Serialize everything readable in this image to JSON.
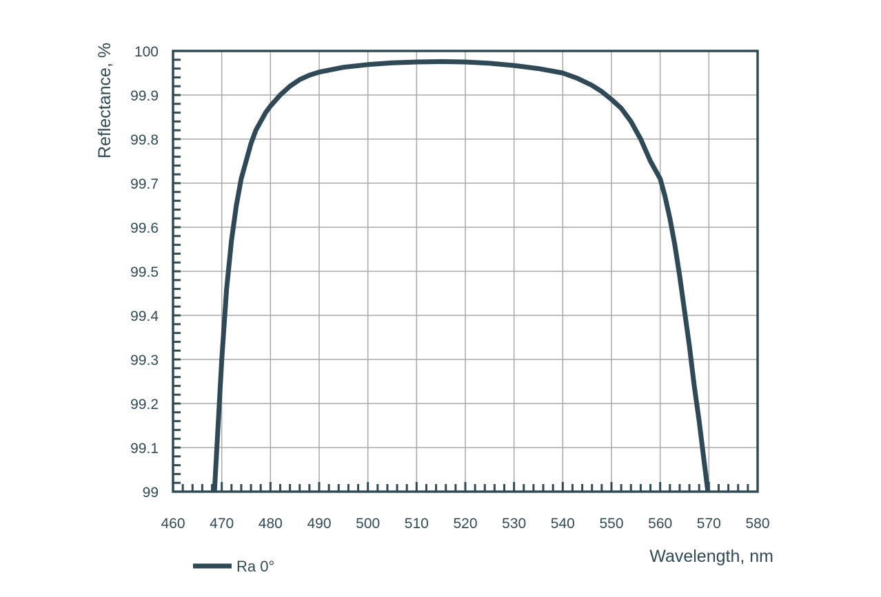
{
  "colors": {
    "axis": "#2f4a56",
    "grid": "#a8a8a8",
    "series": "#2f4a56",
    "background": "#ffffff"
  },
  "chart_data": {
    "type": "line",
    "title": "",
    "xlabel": "Wavelength, nm",
    "ylabel": "Reflectance, %",
    "xlim": [
      460,
      580
    ],
    "ylim": [
      99,
      100
    ],
    "x_ticks": [
      460,
      470,
      480,
      490,
      500,
      510,
      520,
      530,
      540,
      550,
      560,
      570,
      580
    ],
    "x_tick_labels": [
      "460",
      "470",
      "480",
      "490",
      "500",
      "510",
      "520",
      "530",
      "540",
      "550",
      "560",
      "570",
      "580"
    ],
    "y_ticks": [
      99,
      99.1,
      99.2,
      99.3,
      99.4,
      99.5,
      99.6,
      99.7,
      99.8,
      99.9,
      100
    ],
    "y_tick_labels": [
      "99",
      "99.1",
      "99.2",
      "99.3",
      "99.4",
      "99.5",
      "99.6",
      "99.7",
      "99.8",
      "99.9",
      "100"
    ],
    "grid": true,
    "legend_position": "bottom-left",
    "series": [
      {
        "name": "Ra 0°",
        "x": [
          468.5,
          469.0,
          470.0,
          471.0,
          472.0,
          473.0,
          474.0,
          475.0,
          476.0,
          477.0,
          478.0,
          479.0,
          480.0,
          482.0,
          484.0,
          486.0,
          488.0,
          490.0,
          495.0,
          500.0,
          505.0,
          510.0,
          515.0,
          520.0,
          525.0,
          530.0,
          535.0,
          540.0,
          543.0,
          546.0,
          548.0,
          550.0,
          552.0,
          554.0,
          556.0,
          558.0,
          560.0,
          561.0,
          562.0,
          563.0,
          564.0,
          565.0,
          566.0,
          567.0,
          568.0,
          569.0,
          569.8
        ],
        "y": [
          99.0,
          99.1,
          99.3,
          99.46,
          99.57,
          99.65,
          99.71,
          99.75,
          99.79,
          99.82,
          99.84,
          99.86,
          99.875,
          99.9,
          99.92,
          99.935,
          99.945,
          99.952,
          99.963,
          99.969,
          99.973,
          99.975,
          99.976,
          99.975,
          99.972,
          99.967,
          99.96,
          99.95,
          99.938,
          99.922,
          99.908,
          99.89,
          99.87,
          99.84,
          99.8,
          99.75,
          99.71,
          99.67,
          99.62,
          99.56,
          99.49,
          99.41,
          99.33,
          99.24,
          99.16,
          99.07,
          99.0
        ]
      }
    ]
  }
}
